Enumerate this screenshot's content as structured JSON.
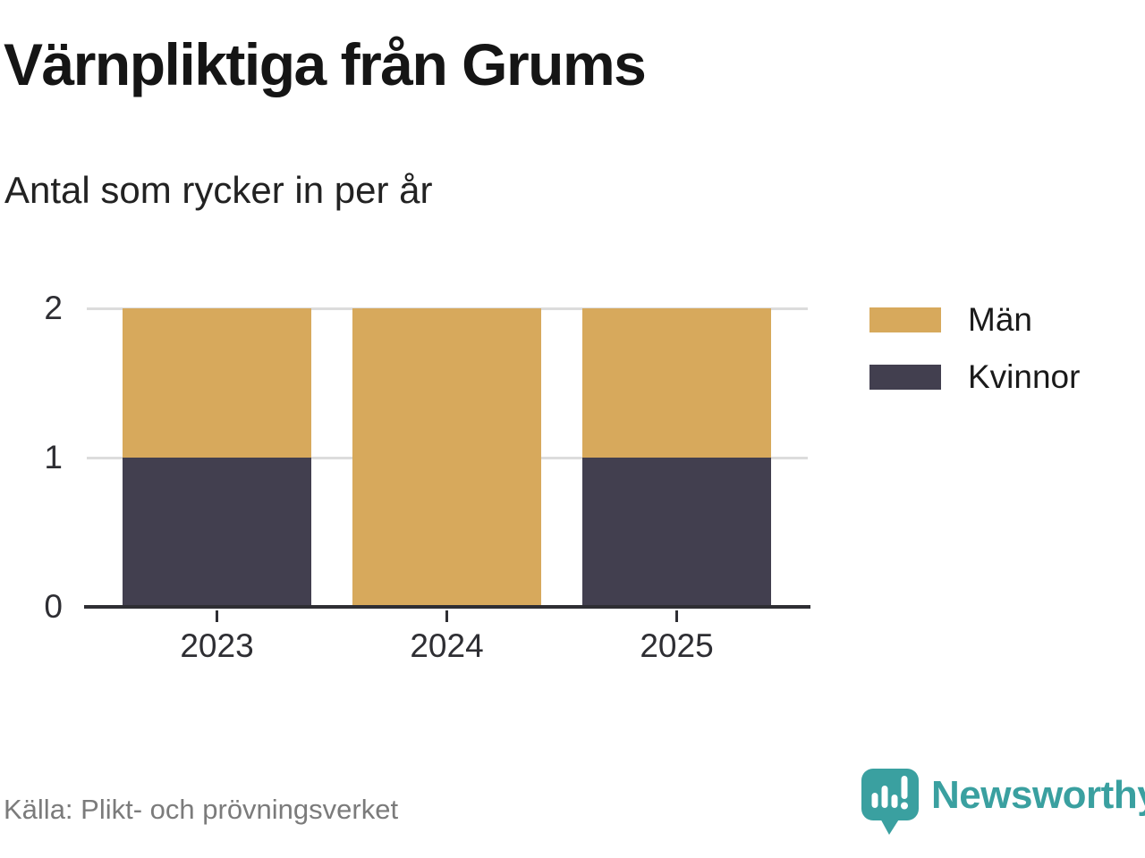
{
  "header": {
    "title": "Värnpliktiga från Grums",
    "subtitle": "Antal som rycker in per år"
  },
  "chart_data": {
    "type": "bar",
    "stacked": true,
    "title": "Värnpliktiga från Grums",
    "subtitle": "Antal som rycker in per år",
    "categories": [
      "2023",
      "2024",
      "2025"
    ],
    "series": [
      {
        "name": "Män",
        "color": "#d7a95c",
        "values": [
          1,
          2,
          1
        ]
      },
      {
        "name": "Kvinnor",
        "color": "#423f4f",
        "values": [
          1,
          0,
          1
        ]
      }
    ],
    "stack_order_bottom_to_top": [
      "Kvinnor",
      "Män"
    ],
    "xlabel": "",
    "ylabel": "",
    "ylim": [
      0,
      2
    ],
    "yticks": [
      0,
      1,
      2
    ],
    "grid": true,
    "legend_position": "right",
    "source": "Källa: Plikt- och prövningsverket"
  },
  "footer": {
    "brand": "Newsworthy",
    "brand_color": "#3aa0a0",
    "logo_icon": "newsworthy-speech-bubble-chart-icon"
  },
  "colors": {
    "bar_gold": "#d7a95c",
    "bar_dark": "#423f4f",
    "teal": "#3aa0a0",
    "grid": "#dcdcdc",
    "axis": "#2e2e33",
    "text": "#1a1a1a",
    "muted_text": "#7b7b7b"
  }
}
